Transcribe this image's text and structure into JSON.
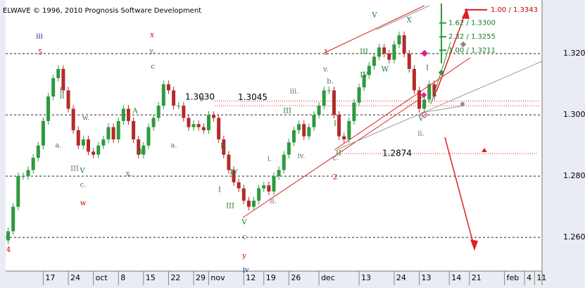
{
  "chart_data": {
    "type": "candlestick",
    "title": "ELWAVE © 1996, 2010 Prognosis Software Development",
    "open": [
      1.259,
      1.262,
      1.27,
      1.28,
      1.28,
      1.282,
      1.286,
      1.29,
      1.298,
      1.306,
      1.312,
      1.315,
      1.308,
      1.302,
      1.295,
      1.29,
      1.292,
      1.288,
      1.287,
      1.29,
      1.292,
      1.296,
      1.292,
      1.298,
      1.302,
      1.298,
      1.292,
      1.287,
      1.29,
      1.296,
      1.299,
      1.303,
      1.31,
      1.308,
      1.303,
      1.303,
      1.299,
      1.296,
      1.297,
      1.296,
      1.295,
      1.3,
      1.299,
      1.292,
      1.287,
      1.282,
      1.278,
      1.276,
      1.272,
      1.27,
      1.272,
      1.276,
      1.277,
      1.275,
      1.28,
      1.282,
      1.287,
      1.291,
      1.295,
      1.297,
      1.293,
      1.296,
      1.3,
      1.303,
      1.308,
      1.308,
      1.3,
      1.293,
      1.292,
      1.298,
      1.304,
      1.309,
      1.313,
      1.316,
      1.319,
      1.322,
      1.32,
      1.318,
      1.323,
      1.326,
      1.32,
      1.315,
      1.308,
      1.302,
      1.305,
      1.31
    ],
    "high": [
      1.2632,
      1.2712,
      1.2812,
      1.2812,
      1.2832,
      1.2872,
      1.2912,
      1.2992,
      1.3072,
      1.3132,
      1.3162,
      1.3162,
      1.3092,
      1.3032,
      1.2962,
      1.2932,
      1.2932,
      1.2892,
      1.2912,
      1.2932,
      1.2972,
      1.2972,
      1.2992,
      1.3032,
      1.3032,
      1.2992,
      1.2932,
      1.2912,
      1.2972,
      1.3002,
      1.3042,
      1.3112,
      1.3112,
      1.3092,
      1.3042,
      1.3042,
      1.3002,
      1.2982,
      1.2982,
      1.2972,
      1.3012,
      1.3012,
      1.3002,
      1.2932,
      1.2882,
      1.2832,
      1.2792,
      1.2772,
      1.2732,
      1.2732,
      1.2772,
      1.2782,
      1.2782,
      1.2812,
      1.2832,
      1.2882,
      1.2922,
      1.2962,
      1.2982,
      1.2982,
      1.2972,
      1.3012,
      1.3042,
      1.3092,
      1.3092,
      1.3092,
      1.3012,
      1.2942,
      1.2992,
      1.3052,
      1.3102,
      1.3142,
      1.3172,
      1.3202,
      1.3232,
      1.3232,
      1.3212,
      1.3242,
      1.3272,
      1.3272,
      1.3212,
      1.3162,
      1.3092,
      1.3062,
      1.3112,
      1.3112
    ],
    "low": [
      1.2578,
      1.2608,
      1.2688,
      1.2788,
      1.2788,
      1.2808,
      1.2848,
      1.2888,
      1.2968,
      1.3048,
      1.3108,
      1.3068,
      1.3008,
      1.2938,
      1.2888,
      1.2888,
      1.2868,
      1.2858,
      1.2858,
      1.2888,
      1.2908,
      1.2908,
      1.2908,
      1.2968,
      1.2968,
      1.2908,
      1.2858,
      1.2858,
      1.2888,
      1.2948,
      1.2978,
      1.3018,
      1.3068,
      1.3018,
      1.3018,
      1.2978,
      1.2948,
      1.2948,
      1.2948,
      1.2938,
      1.2938,
      1.2978,
      1.2908,
      1.2858,
      1.2808,
      1.2768,
      1.2748,
      1.2708,
      1.2688,
      1.2688,
      1.2708,
      1.2748,
      1.2738,
      1.2738,
      1.2788,
      1.2808,
      1.2858,
      1.2898,
      1.2938,
      1.2918,
      1.2918,
      1.2948,
      1.2988,
      1.3018,
      1.3068,
      1.2988,
      1.2918,
      1.2908,
      1.2908,
      1.2968,
      1.3028,
      1.3078,
      1.3118,
      1.3148,
      1.3178,
      1.3188,
      1.3168,
      1.3168,
      1.3218,
      1.3188,
      1.3138,
      1.3068,
      1.3008,
      1.3008,
      1.3038,
      1.3048
    ],
    "close": [
      1.262,
      1.27,
      1.28,
      1.28,
      1.282,
      1.286,
      1.29,
      1.298,
      1.306,
      1.312,
      1.315,
      1.308,
      1.302,
      1.295,
      1.29,
      1.292,
      1.288,
      1.287,
      1.29,
      1.292,
      1.296,
      1.292,
      1.298,
      1.302,
      1.298,
      1.292,
      1.287,
      1.29,
      1.296,
      1.299,
      1.303,
      1.31,
      1.308,
      1.303,
      1.303,
      1.299,
      1.296,
      1.297,
      1.296,
      1.295,
      1.3,
      1.299,
      1.292,
      1.287,
      1.282,
      1.278,
      1.276,
      1.272,
      1.27,
      1.272,
      1.276,
      1.277,
      1.275,
      1.28,
      1.282,
      1.287,
      1.291,
      1.295,
      1.297,
      1.293,
      1.296,
      1.3,
      1.303,
      1.308,
      1.308,
      1.3,
      1.293,
      1.292,
      1.298,
      1.304,
      1.309,
      1.313,
      1.316,
      1.319,
      1.322,
      1.32,
      1.318,
      1.323,
      1.326,
      1.32,
      1.315,
      1.308,
      1.302,
      1.305,
      1.31,
      1.306
    ],
    "up_color": "#2e9a3e",
    "down_color": "#b52a2a",
    "xlim": [
      -0.5,
      106.5
    ],
    "xticks": [
      {
        "value": 7,
        "label": "17"
      },
      {
        "value": 12,
        "label": "24"
      },
      {
        "value": 17,
        "label": "oct"
      },
      {
        "value": 22,
        "label": "8"
      },
      {
        "value": 27,
        "label": "15"
      },
      {
        "value": 32,
        "label": "22"
      },
      {
        "value": 37,
        "label": "29"
      },
      {
        "value": 40,
        "label": "nov"
      },
      {
        "value": 47,
        "label": "12"
      },
      {
        "value": 51,
        "label": "19"
      },
      {
        "value": 56,
        "label": "26"
      },
      {
        "value": 62,
        "label": "dec"
      },
      {
        "value": 70,
        "label": "13"
      },
      {
        "value": 77,
        "label": "24"
      },
      {
        "value": 82,
        "label": "13"
      },
      {
        "value": 88,
        "label": "14"
      },
      {
        "value": 92,
        "label": "21"
      },
      {
        "value": 99,
        "label": "feb"
      },
      {
        "value": 103,
        "label": "4"
      },
      {
        "value": 105,
        "label": "11"
      }
    ],
    "ylim": [
      1.249,
      1.3375
    ],
    "yticks": [
      {
        "value": 1.26,
        "label": "1.2600"
      },
      {
        "value": 1.28,
        "label": "1.2800"
      },
      {
        "value": 1.3,
        "label": "1.3000"
      },
      {
        "value": 1.32,
        "label": "1.3200"
      }
    ],
    "grid": true,
    "levels": [
      {
        "value": 1.3045,
        "label": "1.3045"
      },
      {
        "value": 1.303,
        "label": "1.3030"
      },
      {
        "value": 1.2874,
        "label": "1.2874"
      }
    ],
    "targets": [
      {
        "value": 1.3343,
        "label": "1.00 / 1.3343"
      },
      {
        "value": 1.33,
        "label": "1.62 / 1.3300"
      },
      {
        "value": 1.3255,
        "label": "2.32 / 1.3255"
      },
      {
        "value": 1.3211,
        "label": "1.00 / 1.3211"
      }
    ],
    "wave_labels": [
      "4",
      "iii",
      "5",
      "b",
      "ii",
      "a.",
      "w.",
      "III",
      "V",
      "c.",
      "w",
      "A",
      "B",
      "x.",
      "x",
      "y.",
      "c",
      "a.",
      "b",
      "II",
      "IV",
      "I",
      "III",
      "V",
      "c",
      "y",
      "iv",
      "i.",
      "ii.",
      "iii.",
      "III",
      "iv.",
      "v.",
      "b.",
      "1",
      "c.",
      "II",
      "2",
      "I",
      "V",
      "III",
      "IV",
      "W",
      "X",
      "V",
      "ii.",
      "I"
    ]
  }
}
